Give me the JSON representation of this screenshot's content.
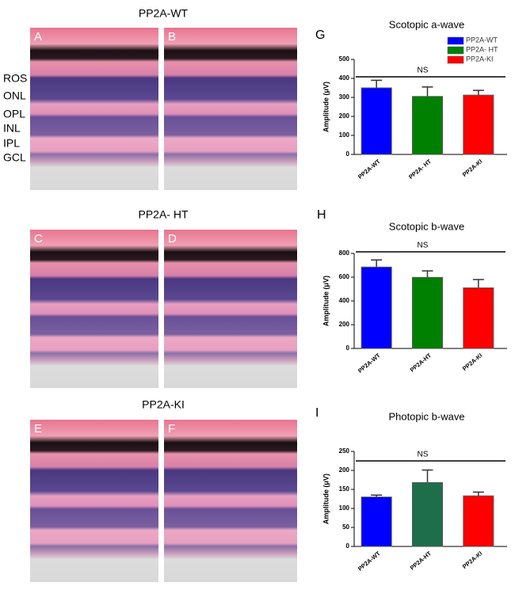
{
  "figure": {
    "groups": [
      {
        "title": "PP2A-WT",
        "panels": [
          "A",
          "B"
        ]
      },
      {
        "title": "PP2A- HT",
        "panels": [
          "C",
          "D"
        ]
      },
      {
        "title": "PP2A-KI",
        "panels": [
          "E",
          "F"
        ]
      }
    ],
    "layers": [
      "ROS",
      "ONL",
      "OPL",
      "INL",
      "IPL",
      "GCL"
    ]
  },
  "chart_data": [
    {
      "type": "bar",
      "panel_label": "G",
      "title": "Scotopic a-wave",
      "y_label": "Amplitude  (μV)",
      "categories": [
        "PP2A-WT",
        "PP2A- HT",
        "PP2A-KI"
      ],
      "values": [
        350,
        305,
        312
      ],
      "errors": [
        40,
        50,
        25
      ],
      "colors": [
        "#0000ff",
        "#008000",
        "#ff0000"
      ],
      "ylim": [
        0,
        500
      ],
      "yticks": [
        0,
        100,
        200,
        300,
        400,
        500
      ],
      "legend": "top-right",
      "annotation": "NS"
    },
    {
      "type": "bar",
      "panel_label": "H",
      "title": "Scotopic b-wave",
      "y_label": "Amplitude  (μV)",
      "categories": [
        "PP2A-WT",
        "PP2A-HT",
        "PP2A-KI"
      ],
      "values": [
        685,
        598,
        510
      ],
      "errors": [
        60,
        55,
        70
      ],
      "colors": [
        "#0000ff",
        "#008000",
        "#ff0000"
      ],
      "ylim": [
        0,
        800
      ],
      "yticks": [
        0,
        200,
        400,
        600,
        800
      ],
      "annotation": "NS"
    },
    {
      "type": "bar",
      "panel_label": "I",
      "title": "Photopic b-wave",
      "y_label": "Amplitude  (μV)",
      "categories": [
        "PP2A-WT",
        "PP2A-HT",
        "PP2A-KI"
      ],
      "values": [
        130,
        168,
        133
      ],
      "errors": [
        5,
        33,
        10
      ],
      "colors": [
        "#0000ff",
        "#1e6e4b",
        "#ff0000"
      ],
      "ylim": [
        0,
        250
      ],
      "yticks": [
        0,
        50,
        100,
        150,
        200,
        250
      ],
      "annotation": "NS"
    }
  ]
}
